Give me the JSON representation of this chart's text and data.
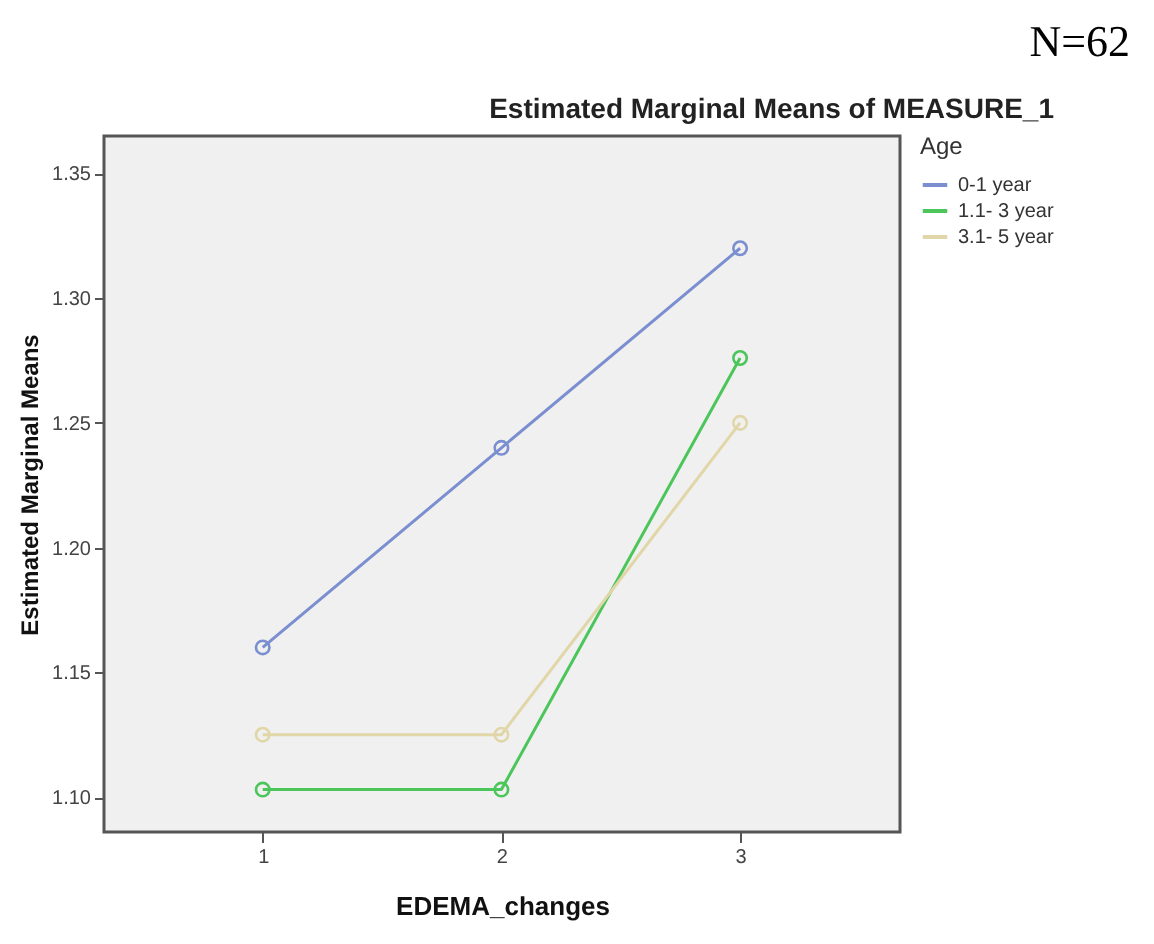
{
  "chart_data": {
    "type": "line",
    "title": "Estimated Marginal Means of MEASURE_1",
    "xlabel": "EDEMA_changes",
    "ylabel": "Estimated Marginal Means",
    "legend_title": "Age",
    "annotations": [
      "N=62"
    ],
    "x": [
      1,
      2,
      3
    ],
    "series": [
      {
        "name": "0-1 year",
        "color": "#7b8fd0",
        "values": [
          1.16,
          1.24,
          1.32
        ]
      },
      {
        "name": "1.1- 3 year",
        "color": "#4cc65a",
        "values": [
          1.103,
          1.103,
          1.276
        ]
      },
      {
        "name": "3.1- 5 year",
        "color": "#e0d6a8",
        "values": [
          1.125,
          1.125,
          1.25
        ]
      }
    ],
    "xlim": [
      0.335,
      3.67
    ],
    "xticks": [
      1,
      2,
      3
    ],
    "ylim": [
      1.086,
      1.365
    ],
    "yticks": [
      {
        "value": 1.1,
        "label": "1.10"
      },
      1.15,
      {
        "value": 1.2,
        "label": "1.20"
      },
      1.25,
      {
        "value": 1.3,
        "label": "1.30"
      },
      1.35
    ],
    "grid": false,
    "legend": "right",
    "marker": "circle",
    "line_style": "solid"
  }
}
